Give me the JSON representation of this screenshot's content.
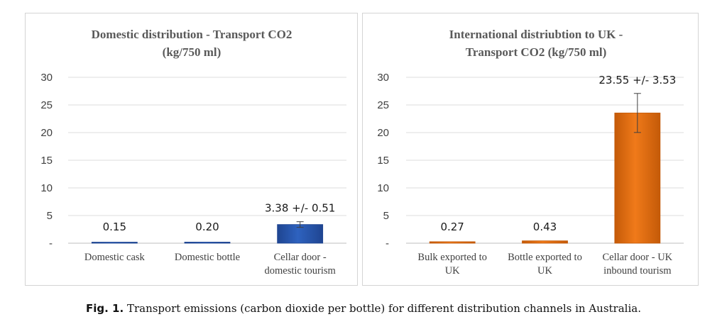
{
  "chart_data": [
    {
      "type": "bar",
      "title_lines": [
        "Domestic distribution - Transport CO2",
        "(kg/750 ml)"
      ],
      "categories": [
        [
          "Domestic cask"
        ],
        [
          "Domestic bottle"
        ],
        [
          "Cellar door -",
          "domestic tourism"
        ]
      ],
      "values": [
        0.15,
        0.2,
        3.38
      ],
      "errors": [
        0,
        0,
        0.51
      ],
      "data_labels": [
        "0.15",
        "0.20",
        "3.38  +/- 0.51"
      ],
      "ylim": [
        0,
        30
      ],
      "yticks": [
        "-",
        "5",
        "10",
        "15",
        "20",
        "25",
        "30"
      ],
      "grid": true,
      "bar_color": "#2e62bf",
      "bar_edge": "#1f4591"
    },
    {
      "type": "bar",
      "title_lines": [
        "International distriubtion to UK -",
        "Transport CO2 (kg/750 ml)"
      ],
      "categories": [
        [
          "Bulk exported to",
          "UK"
        ],
        [
          "Bottle exported to",
          "UK"
        ],
        [
          "Cellar door - UK",
          "inbound tourism"
        ]
      ],
      "values": [
        0.27,
        0.43,
        23.55
      ],
      "errors": [
        0,
        0,
        3.53
      ],
      "data_labels": [
        "0.27",
        "0.43",
        "23.55 +/- 3.53"
      ],
      "ylim": [
        0,
        30
      ],
      "yticks": [
        "-",
        "5",
        "10",
        "15",
        "20",
        "25",
        "30"
      ],
      "grid": true,
      "bar_color": "#f07a1a",
      "bar_edge": "#c45a08"
    }
  ],
  "caption": {
    "label": "Fig. 1.",
    "text": " Transport emissions (carbon dioxide per bottle) for different distribution channels in Australia."
  }
}
